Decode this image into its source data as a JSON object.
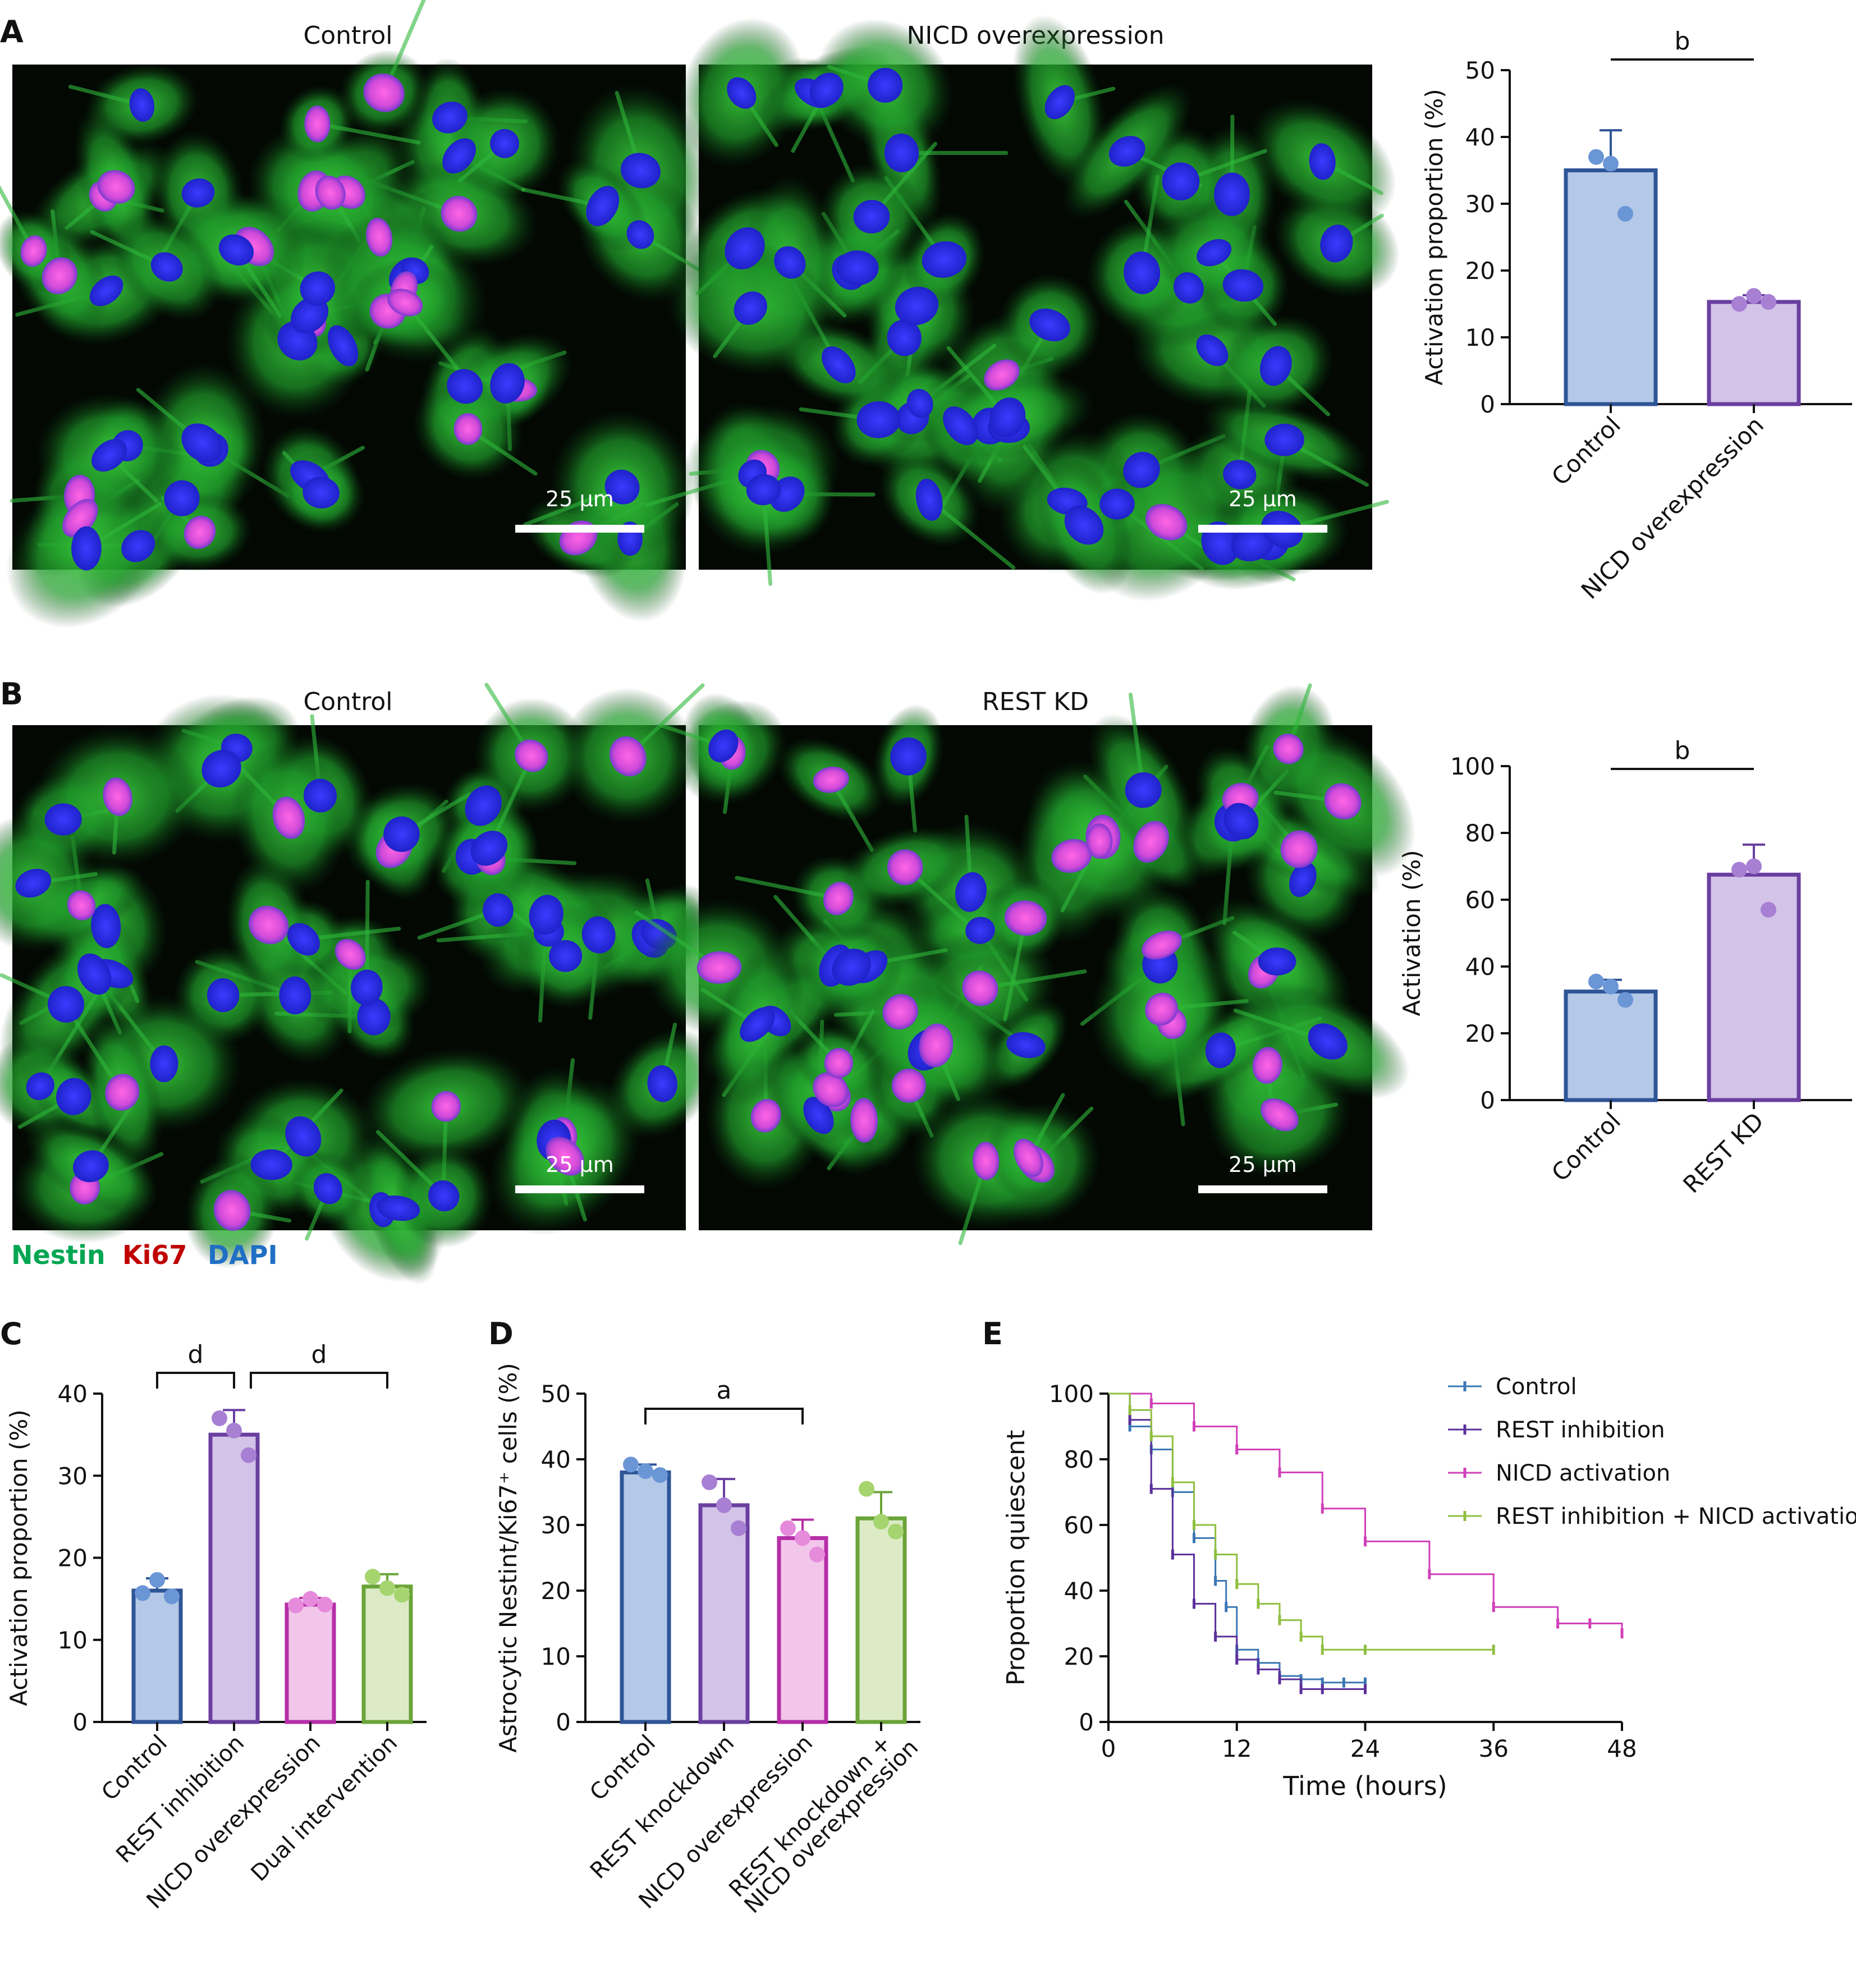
{
  "figure": {
    "panels": {
      "A": {
        "letter": "A",
        "images": [
          {
            "title": "Control",
            "scale_bar": "25 µm"
          },
          {
            "title": "NICD overexpression",
            "scale_bar": "25 µm"
          }
        ]
      },
      "B": {
        "letter": "B",
        "images": [
          {
            "title": "Control",
            "scale_bar": "25 µm"
          },
          {
            "title": "REST KD",
            "scale_bar": "25 µm"
          }
        ]
      },
      "C": {
        "letter": "C"
      },
      "D": {
        "letter": "D"
      },
      "E": {
        "letter": "E"
      }
    },
    "legend": {
      "items": [
        {
          "label": "Nestin",
          "color": "#00a651"
        },
        {
          "label": "Ki67",
          "color": "#c00000"
        },
        {
          "label": "DAPI",
          "color": "#1f6fc4"
        }
      ]
    },
    "colors": {
      "blue_fill": "#b4c8e8",
      "blue_edge": "#2e5597",
      "blue_dot": "#6a96d6",
      "purple_fill": "#d3c3e8",
      "purple_edge": "#6a3fa0",
      "purple_dot": "#a77fd3",
      "pink_fill": "#f2c6ea",
      "pink_edge": "#b62ea8",
      "pink_dot": "#e68bdc",
      "green_fill": "#dcebc6",
      "green_edge": "#6ba43a",
      "green_dot": "#a6d46e"
    }
  },
  "chart_data": [
    {
      "panel": "A",
      "type": "bar",
      "categories": [
        "Control",
        "NICD overexpression"
      ],
      "values": [
        35,
        15.3
      ],
      "errors": [
        6,
        1
      ],
      "points": [
        [
          37,
          36,
          28.5
        ],
        [
          15,
          16.2,
          15.3
        ]
      ],
      "ylabel": "Activation proportion (%)",
      "ylim": [
        0,
        50
      ],
      "yticks": [
        0,
        10,
        20,
        30,
        40,
        50
      ],
      "significance": [
        {
          "from": 0,
          "to": 1,
          "label": "b"
        }
      ]
    },
    {
      "panel": "B",
      "type": "bar",
      "categories": [
        "Control",
        "REST KD"
      ],
      "values": [
        32.5,
        67.5
      ],
      "errors": [
        3.5,
        9
      ],
      "points": [
        [
          35.5,
          34,
          30
        ],
        [
          69,
          70,
          57
        ]
      ],
      "ylabel": "Activation (%)",
      "ylim": [
        0,
        100
      ],
      "yticks": [
        0,
        20,
        40,
        60,
        80,
        100
      ],
      "significance": [
        {
          "from": 0,
          "to": 1,
          "label": "b"
        }
      ]
    },
    {
      "panel": "C",
      "type": "bar",
      "categories": [
        "Control",
        "REST inhibition",
        "NICD overexpression",
        "Dual intervention"
      ],
      "values": [
        16,
        35,
        14.3,
        16.5
      ],
      "errors": [
        1.5,
        3,
        0.8,
        1.5
      ],
      "points": [
        [
          15.7,
          17.3,
          15.3
        ],
        [
          37,
          35.5,
          32.5
        ],
        [
          14.2,
          15,
          14.3
        ],
        [
          17.7,
          16.3,
          15.5
        ]
      ],
      "ylabel": "Activation proportion (%)",
      "ylim": [
        0,
        40
      ],
      "yticks": [
        0,
        10,
        20,
        30,
        40
      ],
      "significance": [
        {
          "from": 0,
          "to": 1,
          "label": "d"
        },
        {
          "from": 1,
          "to": 3,
          "label": "d"
        }
      ]
    },
    {
      "panel": "D",
      "type": "bar",
      "categories": [
        "Control",
        "REST knockdown",
        "NICD overexpression",
        "REST knockdown +\nNICD overexpression"
      ],
      "values": [
        38,
        33,
        28,
        31
      ],
      "errors": [
        1.2,
        4,
        2.8,
        4
      ],
      "points": [
        [
          39.2,
          38.2,
          37.6
        ],
        [
          36.5,
          33,
          29.5
        ],
        [
          29.5,
          28,
          25.5
        ],
        [
          35.5,
          30.5,
          29
        ]
      ],
      "ylabel": "Astrocytic Nestint/Ki67⁺ cells (%)",
      "ylim": [
        0,
        50
      ],
      "yticks": [
        0,
        10,
        20,
        30,
        40,
        50
      ],
      "significance": [
        {
          "from": 0,
          "to": 2,
          "label": "a"
        }
      ]
    },
    {
      "panel": "E",
      "type": "line",
      "step": true,
      "xlabel": "Time (hours)",
      "ylabel": "Proportion quiescent",
      "xlim": [
        0,
        48
      ],
      "ylim": [
        0,
        100
      ],
      "xticks": [
        0,
        12,
        24,
        36,
        48
      ],
      "yticks": [
        0,
        20,
        40,
        60,
        80,
        100
      ],
      "legend_position": "top-right",
      "series": [
        {
          "name": "Control",
          "color": "#3b77b3",
          "steps": [
            [
              0,
              100
            ],
            [
              2,
              90
            ],
            [
              4,
              83
            ],
            [
              6,
              70
            ],
            [
              8,
              56
            ],
            [
              10,
              43
            ],
            [
              11,
              35
            ],
            [
              12,
              22
            ],
            [
              14,
              18
            ],
            [
              16,
              14
            ],
            [
              18,
              13
            ],
            [
              20,
              12
            ],
            [
              22,
              12
            ],
            [
              24,
              12
            ]
          ]
        },
        {
          "name": "REST inhibition",
          "color": "#5b2f9a",
          "steps": [
            [
              0,
              100
            ],
            [
              2,
              92
            ],
            [
              4,
              71
            ],
            [
              6,
              51
            ],
            [
              8,
              36
            ],
            [
              10,
              26
            ],
            [
              12,
              19
            ],
            [
              14,
              16
            ],
            [
              16,
              13
            ],
            [
              18,
              10
            ],
            [
              20,
              10
            ],
            [
              24,
              10
            ]
          ]
        },
        {
          "name": "NICD activation",
          "color": "#d13fb8",
          "steps": [
            [
              0,
              100
            ],
            [
              4,
              97
            ],
            [
              8,
              90
            ],
            [
              12,
              83
            ],
            [
              16,
              76
            ],
            [
              20,
              65
            ],
            [
              24,
              55
            ],
            [
              30,
              45
            ],
            [
              36,
              35
            ],
            [
              42,
              30
            ],
            [
              45,
              30
            ],
            [
              48,
              27
            ]
          ]
        },
        {
          "name": "REST inhibition + NICD activation",
          "color": "#8fbf3f",
          "steps": [
            [
              0,
              100
            ],
            [
              2,
              95
            ],
            [
              4,
              87
            ],
            [
              6,
              73
            ],
            [
              8,
              60
            ],
            [
              10,
              51
            ],
            [
              12,
              42
            ],
            [
              14,
              36
            ],
            [
              16,
              31
            ],
            [
              18,
              26
            ],
            [
              20,
              22
            ],
            [
              24,
              22
            ],
            [
              36,
              22
            ]
          ]
        }
      ]
    }
  ]
}
